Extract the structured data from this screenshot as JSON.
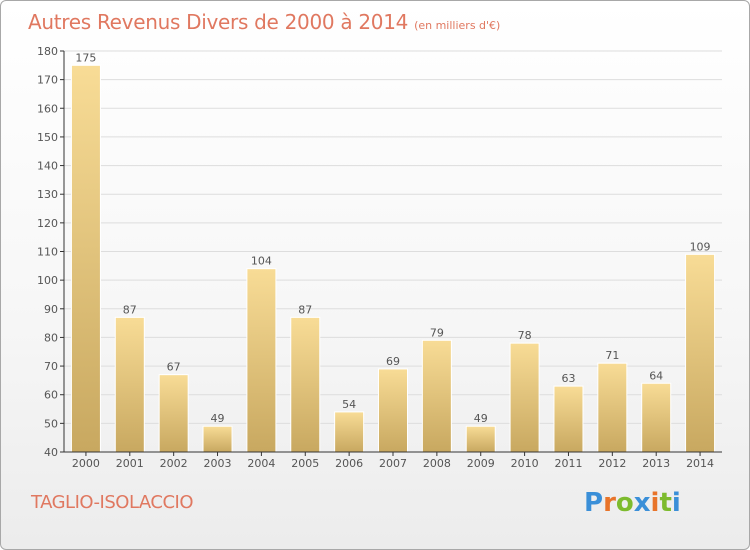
{
  "chart": {
    "title": "Autres Revenus Divers de 2000 à 2014",
    "subtitle": "(en milliers d'€)",
    "commune": "TAGLIO-ISOLACCIO",
    "logo_text": "Proxiti",
    "logo_colors": [
      "#3a8fd8",
      "#e8742a",
      "#7dbb2e",
      "#3a8fd8",
      "#e8742a",
      "#7dbb2e",
      "#3a8fd8"
    ]
  },
  "colors": {
    "title": "#e07860",
    "bar_light": "#f8dc96",
    "bar_dark": "#c8a860",
    "axis": "#333333",
    "grid": "#dddddd"
  },
  "chart_data": {
    "type": "bar",
    "categories": [
      "2000",
      "2001",
      "2002",
      "2003",
      "2004",
      "2005",
      "2006",
      "2007",
      "2008",
      "2009",
      "2010",
      "2011",
      "2012",
      "2013",
      "2014"
    ],
    "values": [
      175,
      87,
      67,
      49,
      104,
      87,
      54,
      69,
      79,
      49,
      78,
      63,
      71,
      64,
      109
    ],
    "title": "Autres Revenus Divers de 2000 à 2014",
    "ylim": [
      40,
      180
    ],
    "yticks": [
      40,
      50,
      60,
      70,
      80,
      90,
      100,
      110,
      120,
      130,
      140,
      150,
      160,
      170,
      180
    ],
    "grid": true,
    "data_labels": true
  }
}
